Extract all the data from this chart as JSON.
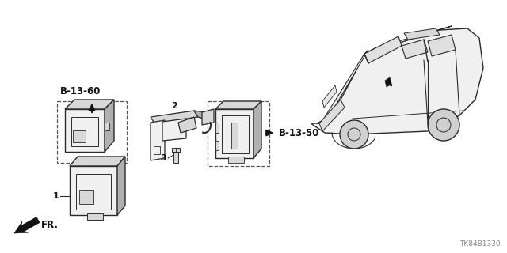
{
  "bg_color": "#ffffff",
  "part_number": "TK84B1330",
  "line_color": "#2a2a2a",
  "dash_color": "#555555",
  "fill_light": "#f0f0f0",
  "fill_mid": "#d8d8d8",
  "fill_dark": "#b0b0b0",
  "text_color": "#111111",
  "labels": {
    "ref_b1360": "B-13-60",
    "ref_b1350": "B-13-50",
    "fr_label": "FR.",
    "num1": "1",
    "num2": "2",
    "num3": "3"
  },
  "layout": {
    "figw": 6.4,
    "figh": 3.2,
    "dpi": 100,
    "xmax": 640,
    "ymax": 320
  }
}
